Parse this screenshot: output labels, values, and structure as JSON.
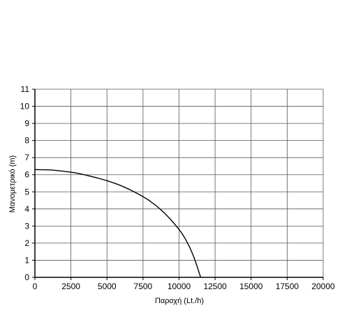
{
  "chart_data": {
    "type": "line",
    "title": "",
    "xlabel": "Παροχή (Lt./h)",
    "ylabel": "Μανομετρικό  (m)",
    "xlim": [
      0,
      20000
    ],
    "ylim": [
      0,
      11
    ],
    "xticks": [
      0,
      2500,
      5000,
      7500,
      10000,
      12500,
      15000,
      17500,
      20000
    ],
    "yticks": [
      0,
      1,
      2,
      3,
      4,
      5,
      6,
      7,
      8,
      9,
      10,
      11
    ],
    "grid": true,
    "legend": "none",
    "colors": {
      "line": "#000000",
      "grid": "#555555",
      "axis": "#000000"
    },
    "series": [
      {
        "x": [
          0,
          1000,
          2000,
          3000,
          4000,
          5000,
          6000,
          7000,
          8000,
          9000,
          10000,
          10500,
          11000,
          11500
        ],
        "y": [
          6.3,
          6.28,
          6.2,
          6.08,
          5.88,
          5.65,
          5.35,
          4.95,
          4.45,
          3.75,
          2.8,
          2.15,
          1.25,
          0
        ]
      }
    ]
  }
}
